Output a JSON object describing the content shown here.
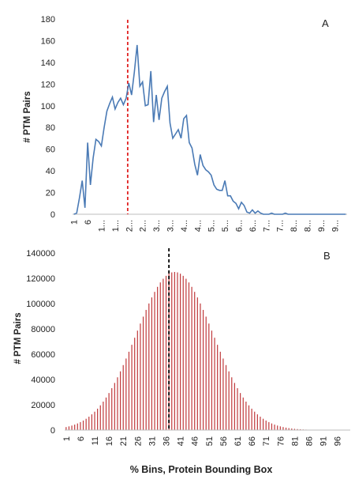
{
  "chart_data": [
    {
      "type": "line",
      "panel_label": "A",
      "ylabel": "# PTM Pairs",
      "xlabel": "",
      "ylim": [
        0,
        180
      ],
      "yticks": [
        0,
        20,
        40,
        60,
        80,
        100,
        120,
        140,
        160,
        180
      ],
      "xticks": [
        "1",
        "6",
        "1...",
        "1...",
        "2...",
        "2...",
        "3...",
        "3...",
        "4...",
        "4...",
        "5...",
        "5...",
        "6...",
        "6...",
        "7...",
        "7...",
        "8...",
        "8...",
        "9...",
        "9..."
      ],
      "grid": false,
      "legend": "none",
      "reference_line": {
        "x": 20,
        "style": "dashed",
        "color": "#e02020"
      },
      "series": [
        {
          "color": "#4a7ab5",
          "x": [
            1,
            2,
            3,
            4,
            5,
            6,
            7,
            8,
            9,
            10,
            11,
            12,
            13,
            14,
            15,
            16,
            17,
            18,
            19,
            20,
            21,
            22,
            23,
            24,
            25,
            26,
            27,
            28,
            29,
            30,
            31,
            32,
            33,
            34,
            35,
            36,
            37,
            38,
            39,
            40,
            41,
            42,
            43,
            44,
            45,
            46,
            47,
            48,
            49,
            50,
            51,
            52,
            53,
            54,
            55,
            56,
            57,
            58,
            59,
            60,
            61,
            62,
            63,
            64,
            65,
            66,
            67,
            68,
            69,
            70,
            71,
            72,
            73,
            74,
            75,
            76,
            77,
            78,
            79,
            80,
            81,
            82,
            83,
            84,
            85,
            86,
            87,
            88,
            89,
            90,
            91,
            92,
            93,
            94,
            95,
            96,
            97,
            98,
            99,
            100
          ],
          "values": [
            0,
            1,
            15,
            31,
            6,
            66,
            27,
            52,
            69,
            67,
            63,
            80,
            95,
            102,
            108,
            97,
            103,
            107,
            101,
            107,
            121,
            110,
            131,
            156,
            118,
            122,
            100,
            101,
            132,
            85,
            110,
            87,
            107,
            113,
            118,
            84,
            70,
            74,
            78,
            70,
            88,
            91,
            66,
            61,
            46,
            36,
            55,
            45,
            41,
            39,
            36,
            27,
            23,
            22,
            22,
            31,
            17,
            17,
            12,
            10,
            5,
            11,
            8,
            2,
            1,
            4,
            1,
            3,
            1,
            0,
            0,
            0,
            1,
            0,
            0,
            0,
            0,
            1,
            0,
            0,
            0,
            0,
            0,
            0,
            0,
            0,
            0,
            0,
            0,
            0,
            0,
            0,
            0,
            0,
            0,
            0,
            0,
            0,
            0,
            0
          ]
        }
      ]
    },
    {
      "type": "bar",
      "panel_label": "B",
      "ylabel": "# PTM Pairs",
      "xlabel": "% Bins, Protein Bounding Box",
      "ylim": [
        0,
        140000
      ],
      "yticks": [
        0,
        20000,
        40000,
        60000,
        80000,
        100000,
        120000,
        140000
      ],
      "xticks": [
        "1",
        "6",
        "11",
        "16",
        "21",
        "26",
        "31",
        "36",
        "41",
        "46",
        "51",
        "56",
        "61",
        "66",
        "71",
        "76",
        "81",
        "86",
        "91",
        "96"
      ],
      "grid": false,
      "legend": "none",
      "reference_line": {
        "x": 37,
        "style": "dashed",
        "color": "#000000"
      },
      "distribution": {
        "shape": "gaussian",
        "peak": 125000,
        "center": 39,
        "sigma": 13.5,
        "bins": 100
      },
      "series": [
        {
          "color": "#c0393b"
        }
      ]
    }
  ]
}
